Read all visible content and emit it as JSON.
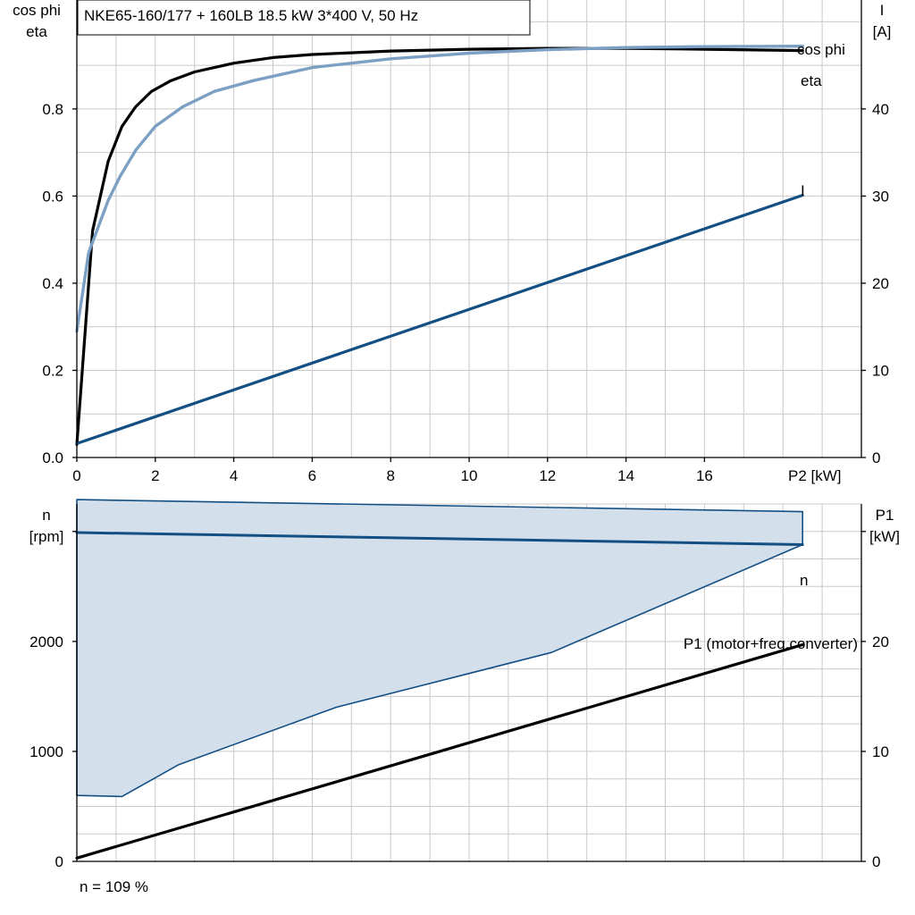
{
  "colors": {
    "eta": "#000000",
    "cosphi": "#7c9fc4",
    "current": "#134f83",
    "speed": "#134f83",
    "band_fill": "#d3dfeb",
    "p1": "#000000",
    "grid": "#c9c9c9"
  },
  "chart_data": [
    {
      "type": "line",
      "title": "NKE65-160/177 + 160LB   18.5 kW   3*400 V, 50 Hz",
      "xlabel": "P2 [kW]",
      "xlim": [
        0,
        20
      ],
      "xticks": [
        "0",
        "2",
        "4",
        "6",
        "8",
        "10",
        "12",
        "14",
        "16"
      ],
      "left_axis": {
        "label_line1": "cos phi",
        "label_line2": "eta",
        "ylim": [
          0,
          1.05
        ],
        "ticks": [
          "0.0",
          "0.2",
          "0.4",
          "0.6",
          "0.8"
        ]
      },
      "right_axis": {
        "label_line1": "I",
        "label_line2": "[A]",
        "ylim": [
          0,
          52.5
        ],
        "ticks": [
          "0",
          "10",
          "20",
          "30",
          "40"
        ]
      },
      "grid": true,
      "series": [
        {
          "name": "eta",
          "axis": "left",
          "x": [
            0,
            0.4,
            0.8,
            1.15,
            1.5,
            1.9,
            2.4,
            3,
            4,
            5,
            6,
            8,
            10,
            12,
            14,
            16,
            18.5
          ],
          "y": [
            0.03,
            0.52,
            0.68,
            0.76,
            0.805,
            0.84,
            0.865,
            0.885,
            0.905,
            0.918,
            0.925,
            0.933,
            0.937,
            0.939,
            0.939,
            0.937,
            0.934
          ]
        },
        {
          "name": "cos phi",
          "axis": "left",
          "x": [
            0,
            0.3,
            0.8,
            1.1,
            1.5,
            2,
            2.7,
            3.5,
            4.5,
            6,
            8,
            10,
            12,
            14,
            16,
            18.5
          ],
          "y": [
            0.29,
            0.47,
            0.59,
            0.645,
            0.705,
            0.76,
            0.805,
            0.84,
            0.865,
            0.895,
            0.915,
            0.928,
            0.936,
            0.941,
            0.943,
            0.944
          ]
        },
        {
          "name": "I",
          "axis": "right",
          "x": [
            0,
            18.5
          ],
          "y": [
            1.6,
            30.1
          ]
        }
      ]
    },
    {
      "type": "area",
      "xlim": [
        0,
        20
      ],
      "left_axis": {
        "label_line1": "n",
        "label_line2": "[rpm]",
        "ylim": [
          0,
          3250
        ],
        "ticks": [
          "0",
          "1000",
          "2000"
        ]
      },
      "right_axis": {
        "label_line1": "P1",
        "label_line2": "[kW]",
        "ylim": [
          0,
          32.5
        ],
        "ticks": [
          "0",
          "10",
          "20"
        ]
      },
      "grid": true,
      "band": {
        "x_upper": [
          0,
          18.5
        ],
        "y_upper": [
          3290,
          3180
        ],
        "x_lower": [
          0,
          1.15,
          2.6,
          6.6,
          12.1,
          18.5
        ],
        "y_lower": [
          600,
          590,
          880,
          1400,
          1900,
          2880
        ]
      },
      "series": [
        {
          "name": "n",
          "axis": "left",
          "x": [
            0,
            18.5
          ],
          "y": [
            2990,
            2880
          ]
        },
        {
          "name": "P1 (motor+freq.converter)",
          "axis": "right",
          "x": [
            0,
            18.5
          ],
          "y": [
            0.3,
            19.7
          ]
        }
      ],
      "annotation": "n = 109 %"
    }
  ]
}
